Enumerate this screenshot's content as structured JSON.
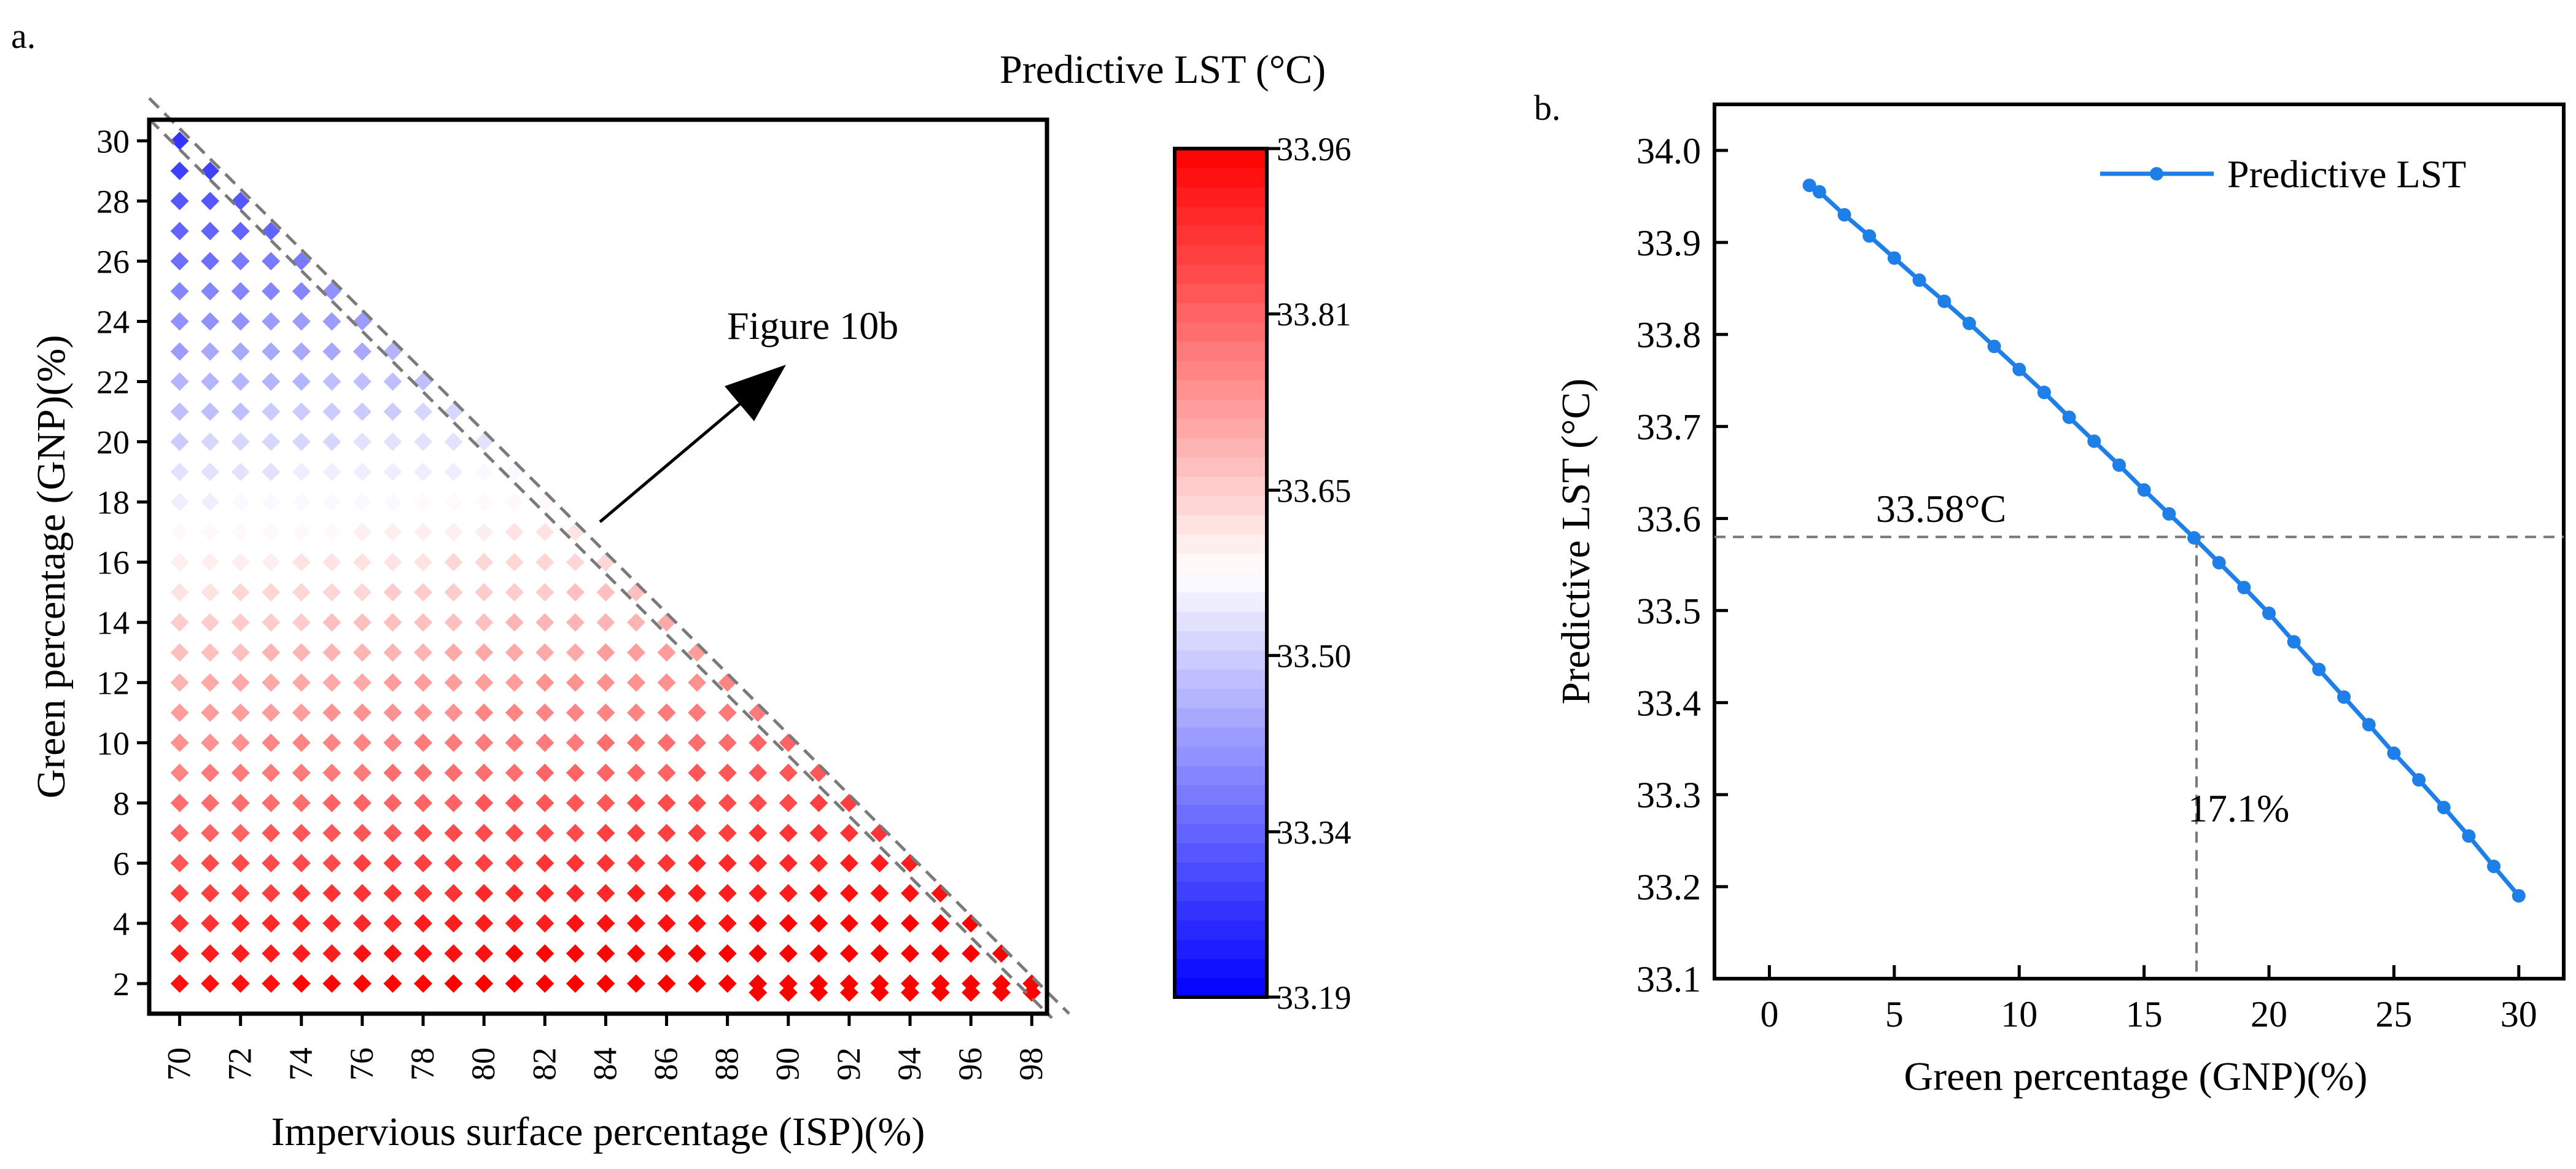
{
  "panel_labels": {
    "a": "a.",
    "b": "b."
  },
  "colors": {
    "low": "#0000ff",
    "mid": "#ffffff",
    "high": "#ff0000",
    "line": "#1e7fe8"
  },
  "chart_data": [
    {
      "type": "heatmap",
      "marker": "diamond",
      "title": "Predictive LST (°C)",
      "xlabel": "Impervious surface percentage (ISP)(%)",
      "ylabel": "Green percentage (GNP)(%)",
      "xlim": [
        69,
        98.5
      ],
      "ylim": [
        1,
        30.7
      ],
      "x_ticks": [
        70,
        72,
        74,
        76,
        78,
        80,
        82,
        84,
        86,
        88,
        90,
        92,
        94,
        96,
        98
      ],
      "y_ticks": [
        2,
        4,
        6,
        8,
        10,
        12,
        14,
        16,
        18,
        20,
        22,
        24,
        26,
        28,
        30
      ],
      "domain": "points with ISP from 70 to 98 and GNP from 2 to 30, where ISP + GNP <= 100",
      "grid_x": [
        70,
        71,
        72,
        73,
        74,
        75,
        76,
        77,
        78,
        79,
        80,
        81,
        82,
        83,
        84,
        85,
        86,
        87,
        88,
        89,
        90,
        91,
        92,
        93,
        94,
        95,
        96,
        97,
        98
      ],
      "grid_y": [
        2,
        3,
        4,
        5,
        6,
        7,
        8,
        9,
        10,
        11,
        12,
        13,
        14,
        15,
        16,
        17,
        18,
        19,
        20,
        21,
        22,
        23,
        24,
        25,
        26,
        27,
        28,
        29,
        30
      ],
      "value_model": "LST ≈ 33.98 - 0.0238·GNP + 0.0032·(ISP - 70) (estimated from colors)",
      "extra_points": [
        {
          "x": 89,
          "y": 1.7
        },
        {
          "x": 90,
          "y": 1.7
        },
        {
          "x": 91,
          "y": 1.7
        },
        {
          "x": 92,
          "y": 1.7
        },
        {
          "x": 93,
          "y": 1.7
        },
        {
          "x": 94,
          "y": 1.7
        },
        {
          "x": 95,
          "y": 1.7
        },
        {
          "x": 96,
          "y": 1.7
        },
        {
          "x": 97,
          "y": 1.7
        },
        {
          "x": 98,
          "y": 1.7
        }
      ],
      "colorbar": {
        "title": "Predictive LST (°C)",
        "min": 33.19,
        "max": 33.96,
        "tick_labels": [
          "33.96",
          "33.81",
          "33.65",
          "33.50",
          "33.34",
          "33.19"
        ]
      },
      "annotations": [
        {
          "text": "Figure 10b",
          "arrow_from": [
            83.8,
            17.3
          ],
          "arrow_to": [
            89.7,
            23.5
          ]
        }
      ],
      "boundary": "dashed diagonal ISP + GNP = 100"
    },
    {
      "type": "line",
      "title": "",
      "xlabel": "Green percentage (GNP)(%)",
      "ylabel": "Predictive LST (°C)",
      "xlim": [
        -2.2,
        31.8
      ],
      "ylim": [
        33.1,
        34.05
      ],
      "x_ticks": [
        "0",
        "5",
        "10",
        "15",
        "20",
        "25",
        "30"
      ],
      "y_ticks": [
        "33.1",
        "33.2",
        "33.3",
        "33.4",
        "33.5",
        "33.6",
        "33.7",
        "33.8",
        "33.9",
        "34.0"
      ],
      "legend": {
        "label": "Predictive LST",
        "position": "top-right"
      },
      "series": [
        {
          "name": "Predictive LST",
          "x": [
            1.6,
            2,
            3,
            4,
            5,
            6,
            7,
            8,
            9,
            10,
            11,
            12,
            13,
            14,
            15,
            16,
            17,
            18,
            19,
            20,
            21,
            22,
            23,
            24,
            25,
            26,
            27,
            28,
            29,
            30
          ],
          "values": [
            33.962,
            33.955,
            33.93,
            33.907,
            33.883,
            33.859,
            33.836,
            33.812,
            33.787,
            33.762,
            33.737,
            33.71,
            33.684,
            33.658,
            33.631,
            33.605,
            33.579,
            33.552,
            33.525,
            33.497,
            33.466,
            33.436,
            33.406,
            33.376,
            33.345,
            33.316,
            33.286,
            33.255,
            33.222,
            33.19
          ]
        }
      ],
      "reference": {
        "y": 33.58,
        "x": 17.1,
        "y_label": "33.58°C",
        "x_label": "17.1%"
      }
    }
  ]
}
